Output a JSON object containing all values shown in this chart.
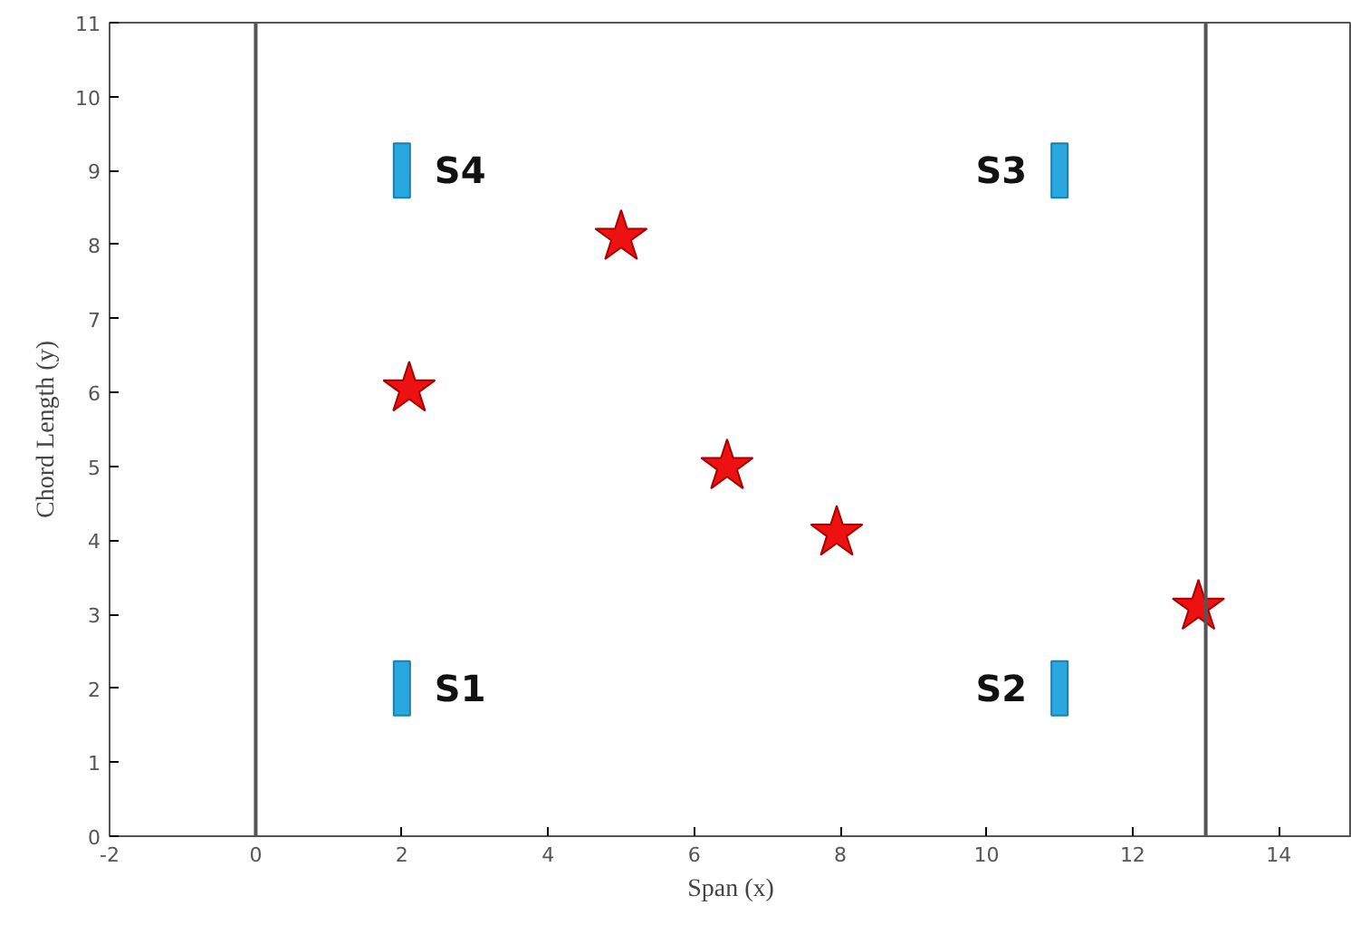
{
  "chart_data": {
    "type": "scatter",
    "xlabel": "Span (x)",
    "ylabel": "Chord Length (y)",
    "xlim": [
      -2,
      15
    ],
    "ylim": [
      0,
      11
    ],
    "xticks": [
      -2,
      0,
      2,
      4,
      6,
      8,
      10,
      12,
      14
    ],
    "yticks": [
      0,
      1,
      2,
      3,
      4,
      5,
      6,
      7,
      8,
      9,
      10,
      11
    ],
    "grid": false,
    "series": [
      {
        "color": "#ee1111",
        "marker": "star",
        "x": [
          2.1,
          5.0,
          6.45,
          7.95,
          12.9
        ],
        "values": [
          6.05,
          8.1,
          5.0,
          4.1,
          3.1
        ]
      },
      {
        "name": "S1",
        "color": "#29a8e0",
        "marker": "square",
        "x": [
          2
        ],
        "values": [
          2
        ]
      },
      {
        "name": "S2",
        "color": "#29a8e0",
        "marker": "square",
        "x": [
          11
        ],
        "values": [
          2
        ]
      },
      {
        "name": "S3",
        "color": "#29a8e0",
        "marker": "square",
        "x": [
          11
        ],
        "values": [
          9
        ]
      },
      {
        "name": "S4",
        "color": "#29a8e0",
        "marker": "square",
        "x": [
          2
        ],
        "values": [
          9
        ]
      }
    ],
    "ref_lines": [
      {
        "axis": "x",
        "value": 0,
        "color": "#555555"
      },
      {
        "axis": "x",
        "value": 13,
        "color": "#555555"
      }
    ]
  }
}
